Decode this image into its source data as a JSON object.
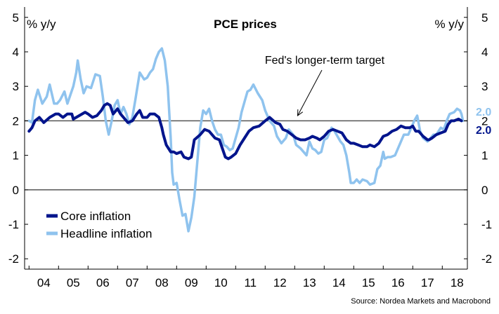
{
  "chart_data": {
    "type": "line",
    "title": "PCE prices",
    "ylabel_left": "% y/y",
    "ylabel_right": "% y/y",
    "source": "Source: Nordea Markets and Macrobond",
    "ylim": [
      -2.3,
      5.3
    ],
    "yticks": [
      -2,
      -1,
      0,
      1,
      2,
      3,
      4,
      5
    ],
    "xlim": [
      2003.85,
      2018.85
    ],
    "xticks": [
      "04",
      "05",
      "06",
      "07",
      "08",
      "09",
      "10",
      "11",
      "12",
      "13",
      "14",
      "15",
      "16",
      "17",
      "18"
    ],
    "reference_line": {
      "y": 2,
      "label": "Fed's longer-term target",
      "annotation": {
        "x": 2013.1,
        "y": 2.15
      }
    },
    "legend_position": "bottom-left",
    "end_labels": {
      "Headline inflation": "2.0",
      "Core inflation": "2.0"
    },
    "colors": {
      "core": "#00148c",
      "headline": "#8fc3ee",
      "axis": "#000000",
      "grid": "#000000",
      "ref_line": "#555555"
    },
    "series": [
      {
        "name": "Core inflation",
        "points": [
          [
            2004.0,
            1.7
          ],
          [
            2004.1,
            1.8
          ],
          [
            2004.2,
            2.0
          ],
          [
            2004.35,
            2.1
          ],
          [
            2004.5,
            1.95
          ],
          [
            2004.7,
            2.1
          ],
          [
            2004.9,
            2.2
          ],
          [
            2005.0,
            2.2
          ],
          [
            2005.15,
            2.1
          ],
          [
            2005.3,
            2.2
          ],
          [
            2005.45,
            2.2
          ],
          [
            2005.5,
            2.05
          ],
          [
            2005.7,
            2.15
          ],
          [
            2005.9,
            2.25
          ],
          [
            2006.0,
            2.2
          ],
          [
            2006.15,
            2.1
          ],
          [
            2006.3,
            2.15
          ],
          [
            2006.45,
            2.3
          ],
          [
            2006.55,
            2.45
          ],
          [
            2006.65,
            2.5
          ],
          [
            2006.75,
            2.45
          ],
          [
            2006.85,
            2.2
          ],
          [
            2006.95,
            2.3
          ],
          [
            2007.0,
            2.35
          ],
          [
            2007.1,
            2.2
          ],
          [
            2007.2,
            2.1
          ],
          [
            2007.35,
            1.95
          ],
          [
            2007.5,
            2.0
          ],
          [
            2007.65,
            2.2
          ],
          [
            2007.75,
            2.3
          ],
          [
            2007.85,
            2.1
          ],
          [
            2008.0,
            2.1
          ],
          [
            2008.1,
            2.2
          ],
          [
            2008.25,
            2.2
          ],
          [
            2008.4,
            2.1
          ],
          [
            2008.5,
            1.8
          ],
          [
            2008.55,
            1.6
          ],
          [
            2008.65,
            1.3
          ],
          [
            2008.8,
            1.1
          ],
          [
            2008.9,
            1.1
          ],
          [
            2009.0,
            1.05
          ],
          [
            2009.15,
            1.1
          ],
          [
            2009.25,
            0.95
          ],
          [
            2009.4,
            0.9
          ],
          [
            2009.5,
            0.95
          ],
          [
            2009.6,
            1.45
          ],
          [
            2009.8,
            1.6
          ],
          [
            2009.95,
            1.75
          ],
          [
            2010.1,
            1.7
          ],
          [
            2010.3,
            1.5
          ],
          [
            2010.45,
            1.45
          ],
          [
            2010.55,
            1.2
          ],
          [
            2010.65,
            0.95
          ],
          [
            2010.75,
            0.9
          ],
          [
            2010.85,
            0.95
          ],
          [
            2011.0,
            1.05
          ],
          [
            2011.15,
            1.3
          ],
          [
            2011.3,
            1.5
          ],
          [
            2011.45,
            1.7
          ],
          [
            2011.6,
            1.8
          ],
          [
            2011.8,
            1.85
          ],
          [
            2012.0,
            2.0
          ],
          [
            2012.15,
            2.1
          ],
          [
            2012.35,
            1.95
          ],
          [
            2012.5,
            1.9
          ],
          [
            2012.6,
            1.75
          ],
          [
            2012.75,
            1.7
          ],
          [
            2012.9,
            1.6
          ],
          [
            2013.05,
            1.5
          ],
          [
            2013.2,
            1.45
          ],
          [
            2013.35,
            1.45
          ],
          [
            2013.5,
            1.5
          ],
          [
            2013.6,
            1.55
          ],
          [
            2013.75,
            1.5
          ],
          [
            2013.85,
            1.45
          ],
          [
            2014.0,
            1.55
          ],
          [
            2014.15,
            1.7
          ],
          [
            2014.3,
            1.75
          ],
          [
            2014.45,
            1.7
          ],
          [
            2014.6,
            1.65
          ],
          [
            2014.75,
            1.45
          ],
          [
            2014.9,
            1.35
          ],
          [
            2015.0,
            1.35
          ],
          [
            2015.15,
            1.3
          ],
          [
            2015.3,
            1.25
          ],
          [
            2015.45,
            1.25
          ],
          [
            2015.55,
            1.3
          ],
          [
            2015.7,
            1.25
          ],
          [
            2015.85,
            1.35
          ],
          [
            2016.0,
            1.55
          ],
          [
            2016.15,
            1.6
          ],
          [
            2016.3,
            1.7
          ],
          [
            2016.45,
            1.75
          ],
          [
            2016.6,
            1.85
          ],
          [
            2016.75,
            1.8
          ],
          [
            2016.9,
            1.8
          ],
          [
            2017.0,
            1.85
          ],
          [
            2017.1,
            1.7
          ],
          [
            2017.2,
            1.7
          ],
          [
            2017.35,
            1.55
          ],
          [
            2017.5,
            1.45
          ],
          [
            2017.55,
            1.45
          ],
          [
            2017.65,
            1.5
          ],
          [
            2017.8,
            1.6
          ],
          [
            2017.95,
            1.65
          ],
          [
            2018.1,
            1.7
          ],
          [
            2018.2,
            1.9
          ],
          [
            2018.3,
            2.0
          ],
          [
            2018.4,
            2.0
          ],
          [
            2018.55,
            2.05
          ],
          [
            2018.65,
            2.0
          ]
        ]
      },
      {
        "name": "Headline inflation",
        "points": [
          [
            2004.0,
            2.0
          ],
          [
            2004.1,
            1.95
          ],
          [
            2004.2,
            2.6
          ],
          [
            2004.3,
            2.9
          ],
          [
            2004.45,
            2.5
          ],
          [
            2004.6,
            2.7
          ],
          [
            2004.7,
            3.05
          ],
          [
            2004.85,
            2.5
          ],
          [
            2004.95,
            2.5
          ],
          [
            2005.05,
            2.6
          ],
          [
            2005.2,
            2.85
          ],
          [
            2005.3,
            2.5
          ],
          [
            2005.4,
            2.75
          ],
          [
            2005.5,
            3.0
          ],
          [
            2005.6,
            3.4
          ],
          [
            2005.65,
            3.75
          ],
          [
            2005.75,
            3.2
          ],
          [
            2005.85,
            2.8
          ],
          [
            2005.95,
            3.0
          ],
          [
            2006.1,
            2.95
          ],
          [
            2006.25,
            3.35
          ],
          [
            2006.4,
            3.3
          ],
          [
            2006.5,
            2.7
          ],
          [
            2006.6,
            2.0
          ],
          [
            2006.7,
            1.6
          ],
          [
            2006.8,
            2.0
          ],
          [
            2006.9,
            2.45
          ],
          [
            2007.0,
            2.6
          ],
          [
            2007.1,
            2.2
          ],
          [
            2007.2,
            2.4
          ],
          [
            2007.3,
            2.2
          ],
          [
            2007.4,
            1.9
          ],
          [
            2007.5,
            2.1
          ],
          [
            2007.6,
            2.6
          ],
          [
            2007.75,
            3.4
          ],
          [
            2007.9,
            3.2
          ],
          [
            2008.0,
            3.25
          ],
          [
            2008.1,
            3.4
          ],
          [
            2008.2,
            3.5
          ],
          [
            2008.3,
            3.8
          ],
          [
            2008.4,
            4.0
          ],
          [
            2008.5,
            4.1
          ],
          [
            2008.6,
            3.75
          ],
          [
            2008.7,
            3.0
          ],
          [
            2008.8,
            1.5
          ],
          [
            2008.85,
            0.5
          ],
          [
            2008.9,
            0.15
          ],
          [
            2009.0,
            0.2
          ],
          [
            2009.1,
            -0.3
          ],
          [
            2009.2,
            -0.75
          ],
          [
            2009.3,
            -0.7
          ],
          [
            2009.4,
            -1.2
          ],
          [
            2009.5,
            -0.8
          ],
          [
            2009.6,
            -0.2
          ],
          [
            2009.7,
            0.8
          ],
          [
            2009.8,
            1.8
          ],
          [
            2009.9,
            2.3
          ],
          [
            2010.0,
            2.2
          ],
          [
            2010.1,
            2.35
          ],
          [
            2010.2,
            2.0
          ],
          [
            2010.3,
            1.75
          ],
          [
            2010.4,
            1.6
          ],
          [
            2010.5,
            1.6
          ],
          [
            2010.6,
            1.3
          ],
          [
            2010.7,
            1.25
          ],
          [
            2010.8,
            1.15
          ],
          [
            2010.9,
            1.2
          ],
          [
            2011.0,
            1.5
          ],
          [
            2011.1,
            1.8
          ],
          [
            2011.2,
            2.25
          ],
          [
            2011.3,
            2.55
          ],
          [
            2011.4,
            2.85
          ],
          [
            2011.5,
            2.9
          ],
          [
            2011.6,
            3.05
          ],
          [
            2011.75,
            2.8
          ],
          [
            2011.9,
            2.6
          ],
          [
            2012.0,
            2.3
          ],
          [
            2012.15,
            2.0
          ],
          [
            2012.3,
            1.85
          ],
          [
            2012.4,
            1.55
          ],
          [
            2012.55,
            1.35
          ],
          [
            2012.7,
            1.5
          ],
          [
            2012.8,
            1.75
          ],
          [
            2012.95,
            1.6
          ],
          [
            2013.05,
            1.3
          ],
          [
            2013.2,
            1.2
          ],
          [
            2013.3,
            1.1
          ],
          [
            2013.4,
            1.0
          ],
          [
            2013.5,
            1.4
          ],
          [
            2013.6,
            1.2
          ],
          [
            2013.7,
            1.15
          ],
          [
            2013.8,
            1.05
          ],
          [
            2013.9,
            1.1
          ],
          [
            2014.0,
            1.45
          ],
          [
            2014.1,
            1.5
          ],
          [
            2014.25,
            1.8
          ],
          [
            2014.35,
            1.7
          ],
          [
            2014.45,
            1.55
          ],
          [
            2014.55,
            1.4
          ],
          [
            2014.65,
            1.3
          ],
          [
            2014.75,
            1.0
          ],
          [
            2014.85,
            0.5
          ],
          [
            2014.9,
            0.2
          ],
          [
            2015.0,
            0.2
          ],
          [
            2015.1,
            0.3
          ],
          [
            2015.2,
            0.2
          ],
          [
            2015.3,
            0.3
          ],
          [
            2015.45,
            0.25
          ],
          [
            2015.55,
            0.15
          ],
          [
            2015.7,
            0.2
          ],
          [
            2015.8,
            0.6
          ],
          [
            2015.9,
            0.7
          ],
          [
            2016.0,
            1.1
          ],
          [
            2016.05,
            0.9
          ],
          [
            2016.15,
            0.95
          ],
          [
            2016.25,
            0.95
          ],
          [
            2016.4,
            1.0
          ],
          [
            2016.55,
            1.3
          ],
          [
            2016.7,
            1.6
          ],
          [
            2016.85,
            1.6
          ],
          [
            2016.95,
            1.8
          ],
          [
            2017.05,
            2.0
          ],
          [
            2017.15,
            2.15
          ],
          [
            2017.25,
            1.7
          ],
          [
            2017.35,
            1.5
          ],
          [
            2017.5,
            1.4
          ],
          [
            2017.6,
            1.5
          ],
          [
            2017.7,
            1.6
          ],
          [
            2017.8,
            1.6
          ],
          [
            2017.95,
            1.8
          ],
          [
            2018.05,
            1.75
          ],
          [
            2018.15,
            2.0
          ],
          [
            2018.25,
            2.2
          ],
          [
            2018.4,
            2.25
          ],
          [
            2018.5,
            2.35
          ],
          [
            2018.6,
            2.3
          ],
          [
            2018.65,
            2.2
          ],
          [
            2018.7,
            2.0
          ]
        ]
      }
    ]
  }
}
